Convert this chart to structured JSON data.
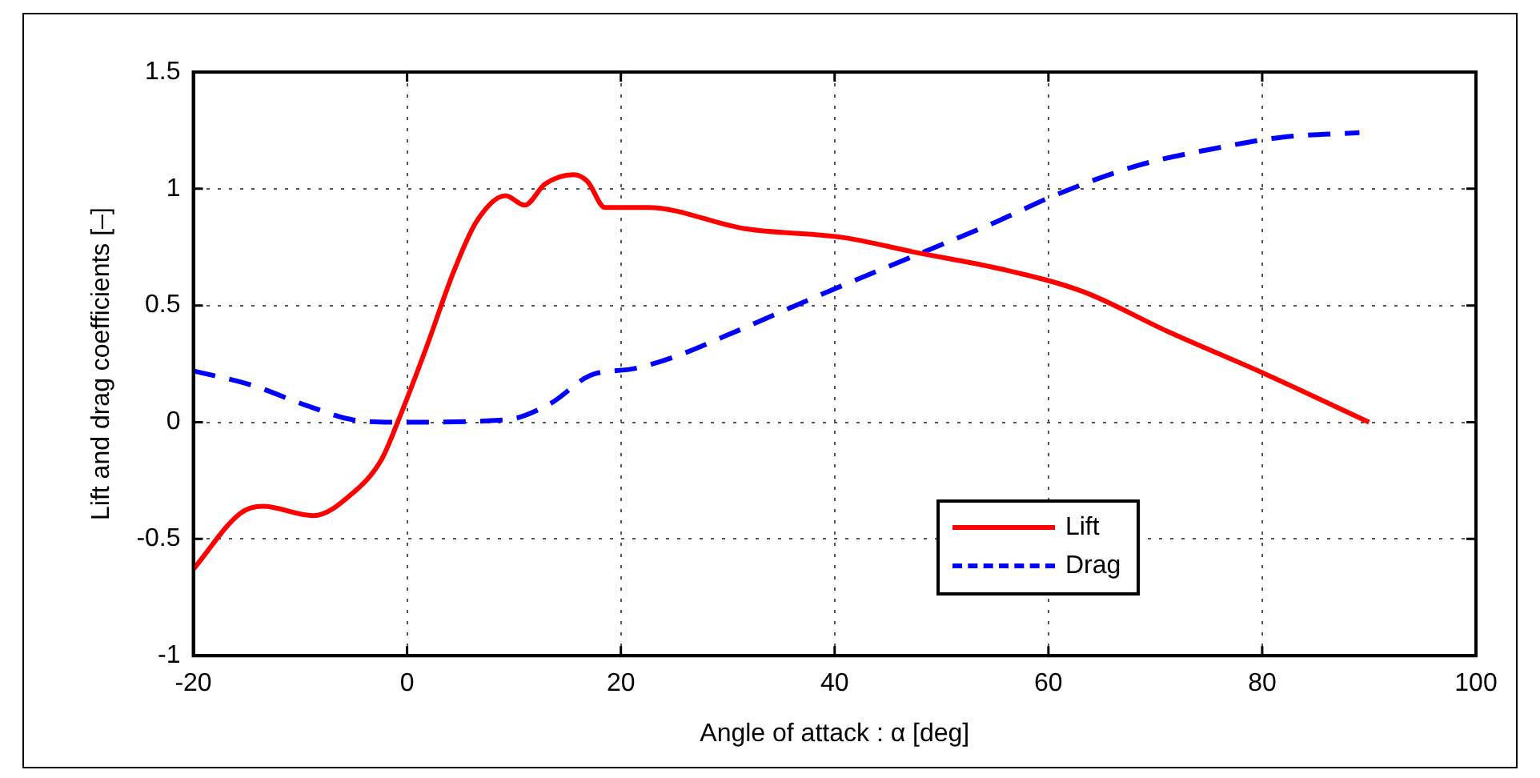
{
  "chart_data": {
    "type": "line",
    "xlabel": "Angle of attack : α [deg]",
    "ylabel": "Lift and drag coefficients [–]",
    "xlim": [
      -20,
      100
    ],
    "xticks": [
      -20,
      0,
      20,
      40,
      60,
      80,
      100
    ],
    "ylim": [
      -1,
      1.5
    ],
    "yticks": [
      -1,
      -0.5,
      0,
      0.5,
      1,
      1.5
    ],
    "grid": true,
    "legend": "bottom right",
    "marker": "none",
    "series": [
      {
        "name": "Lift",
        "color": "#ff0000",
        "line_style": "solid",
        "x": [
          -20,
          -15.6,
          -13.5,
          -8.8,
          -5,
          -2.4,
          -0.8,
          1.8,
          4.4,
          6.5,
          9.2,
          11,
          12.9,
          15.6,
          16.9,
          18.5,
          22.5,
          31.5,
          41,
          47.3,
          55.2,
          63.2,
          71.1,
          80.6,
          90
        ],
        "values": [
          -0.63,
          -0.39,
          -0.36,
          -0.4,
          -0.3,
          -0.16,
          0.01,
          0.32,
          0.65,
          0.86,
          0.97,
          0.93,
          1.02,
          1.06,
          1.03,
          0.92,
          0.92,
          0.83,
          0.79,
          0.73,
          0.66,
          0.56,
          0.39,
          0.2,
          0
        ]
      },
      {
        "name": "Drag",
        "color": "#0000ff",
        "line_style": "dashed",
        "x": [
          -20,
          -14.6,
          -9.3,
          -5,
          -0.8,
          9.2,
          13.4,
          17.1,
          21.3,
          25,
          29.8,
          39.4,
          48.9,
          55.2,
          60.5,
          68.4,
          76.4,
          81.7,
          89.1
        ],
        "values": [
          0.22,
          0.16,
          0.07,
          0.01,
          0,
          0.01,
          0.08,
          0.2,
          0.23,
          0.28,
          0.37,
          0.56,
          0.74,
          0.86,
          0.97,
          1.1,
          1.18,
          1.22,
          1.24
        ]
      }
    ]
  }
}
